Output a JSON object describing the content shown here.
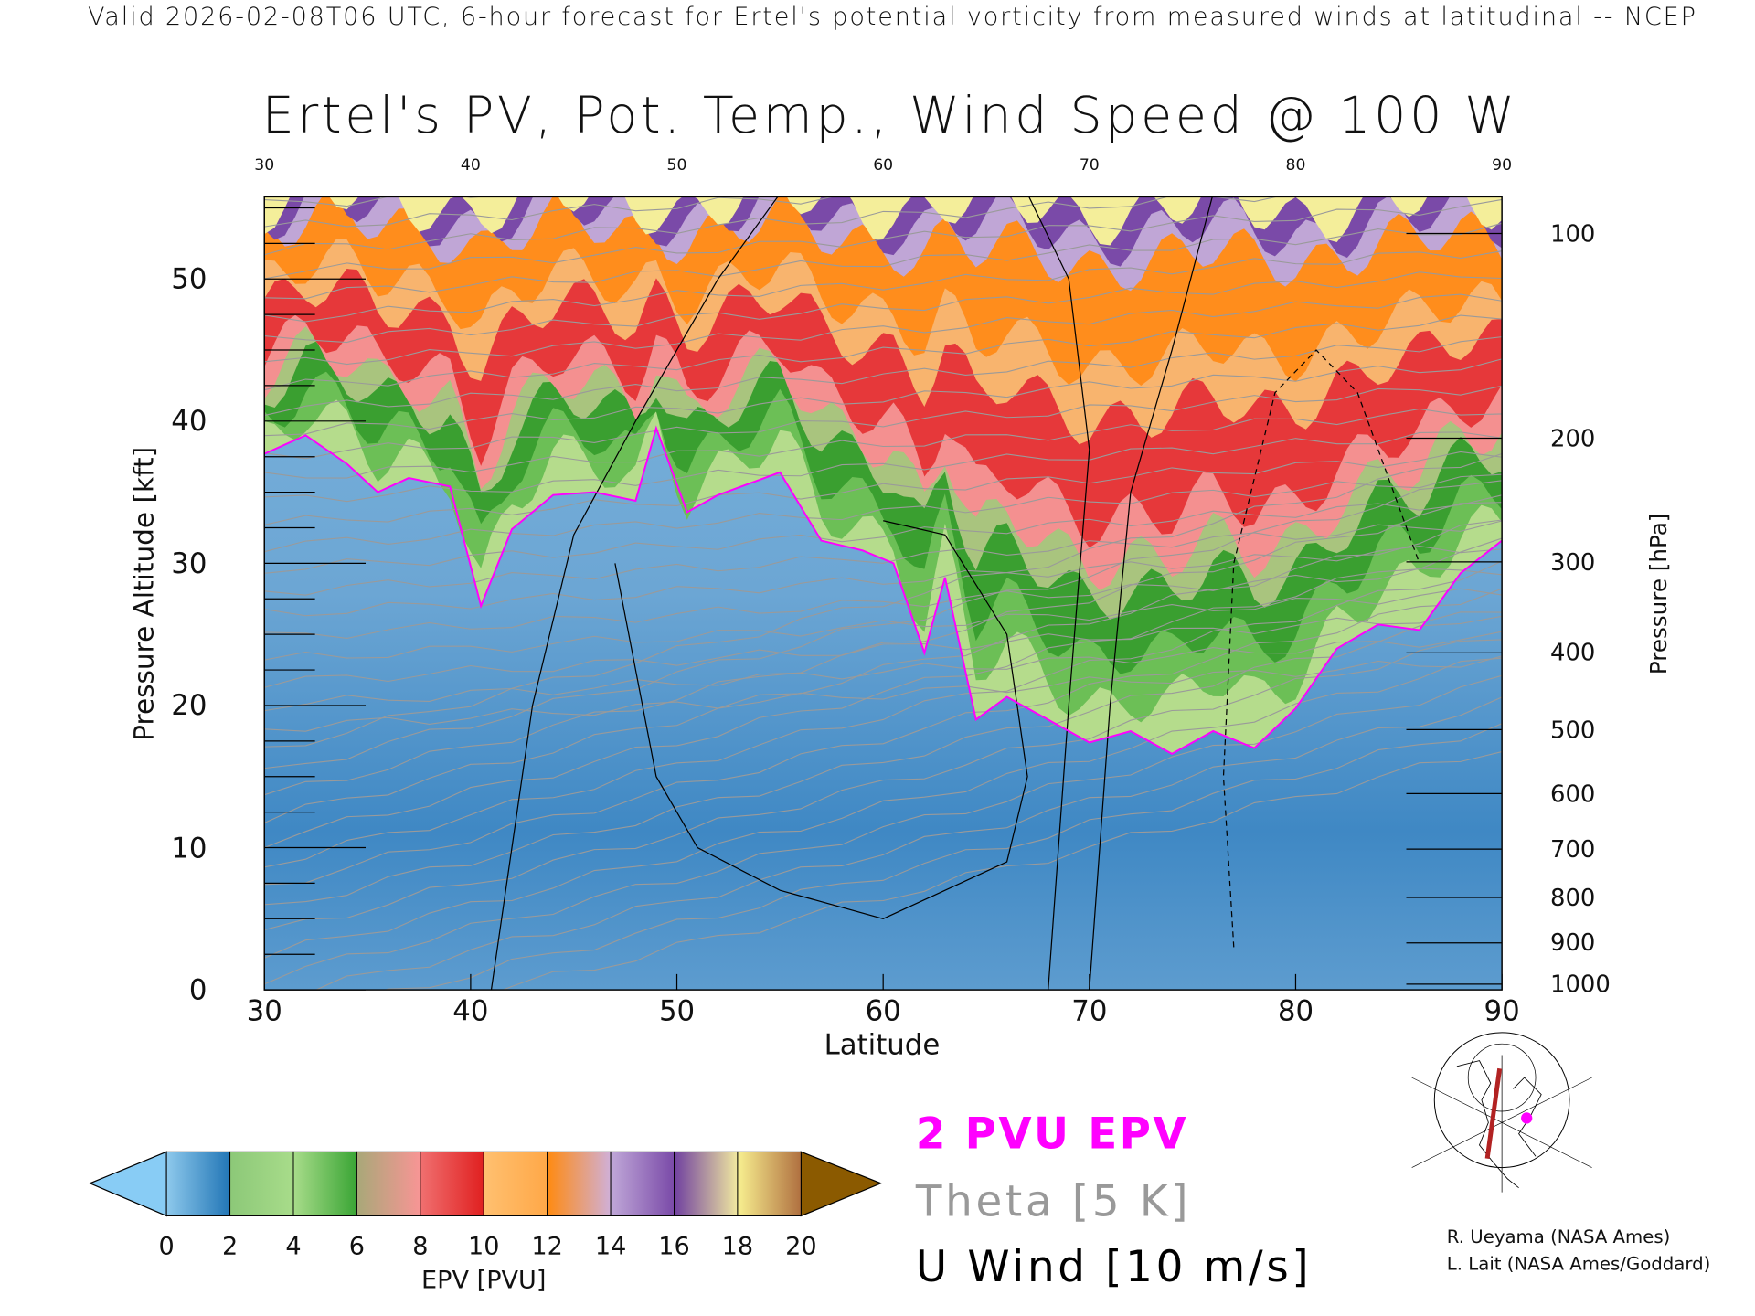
{
  "header": {
    "subtitle": "Valid 2026-02-08T06 UTC, 6-hour forecast for Ertel's potential vorticity from measured winds at latitudinal -- NCEP"
  },
  "chart_data": {
    "type": "heatmap",
    "title": "Ertel's PV, Pot. Temp., Wind Speed @ 100 W",
    "xlabel": "Latitude",
    "ylabel": "Pressure Altitude [kft]",
    "ylabel_right": "Pressure [hPa]",
    "xlim": [
      30,
      90
    ],
    "ylim": [
      0,
      55.8
    ],
    "x_ticks": [
      "30",
      "40",
      "50",
      "60",
      "70",
      "80",
      "90"
    ],
    "top_ticks": [
      "30",
      "40",
      "50",
      "60",
      "70",
      "80",
      "90"
    ],
    "y_ticks": [
      "0",
      "10",
      "20",
      "30",
      "40",
      "50"
    ],
    "pressure_ticks": [
      {
        "label": "100",
        "kft": 53.2
      },
      {
        "label": "200",
        "kft": 38.8
      },
      {
        "label": "300",
        "kft": 30.1
      },
      {
        "label": "400",
        "kft": 23.7
      },
      {
        "label": "500",
        "kft": 18.3
      },
      {
        "label": "600",
        "kft": 13.8
      },
      {
        "label": "700",
        "kft": 9.9
      },
      {
        "label": "800",
        "kft": 6.5
      },
      {
        "label": "900",
        "kft": 3.3
      },
      {
        "label": "1000",
        "kft": 0.4
      }
    ],
    "pv_2pvu_height_kft": {
      "lat": [
        30,
        32,
        34,
        35.5,
        37,
        39,
        40.5,
        42,
        44,
        46,
        48,
        49,
        50.5,
        52,
        55,
        57,
        59,
        60.5,
        62,
        63,
        64.5,
        66,
        68,
        70,
        72,
        74,
        76,
        78,
        80,
        82,
        84,
        86,
        88,
        90
      ],
      "kft": [
        37.7,
        39,
        37,
        35,
        36,
        35.4,
        27,
        32.4,
        34.8,
        35,
        34.4,
        39.5,
        33.6,
        34.8,
        36.4,
        31.6,
        30.9,
        30,
        23.7,
        29,
        19,
        20.6,
        19,
        17.4,
        18.2,
        16.6,
        18.2,
        17,
        19.8,
        24,
        25.7,
        25.3,
        29.3,
        31.6
      ]
    },
    "colorbar": {
      "label": "EPV [PVU]",
      "ticks": [
        "0",
        "2",
        "4",
        "6",
        "8",
        "10",
        "12",
        "14",
        "16",
        "18",
        "20"
      ],
      "under_color": "#88ccf5",
      "over_color": "#8b5a00",
      "segments": [
        [
          "#8ec9ec",
          "#2276b6"
        ],
        [
          "#8cc878",
          "#a8dc8a"
        ],
        [
          "#a8dc8a",
          "#3aa535"
        ],
        [
          "#a8a878",
          "#f89595"
        ],
        [
          "#f07070",
          "#e02020"
        ],
        [
          "#ffc070",
          "#ffa848"
        ],
        [
          "#ff8a10",
          "#d0b0d8"
        ],
        [
          "#c0a8d8",
          "#7a4aa8"
        ],
        [
          "#7040a0",
          "#f0e8a0"
        ],
        [
          "#f8f090",
          "#b07040"
        ]
      ]
    },
    "legend": [
      "2 PVU EPV",
      "Theta [5 K]",
      "U Wind [10 m/s]"
    ],
    "legend_colors": [
      "#ff00ff",
      "#999999",
      "#000000"
    ]
  },
  "credits": [
    "R. Ueyama (NASA Ames)",
    "L. Lait (NASA Ames/Goddard)"
  ],
  "colors": {
    "pv_line": "#ff00ff",
    "section_line": "#b22222",
    "section_dot": "#ff00ff"
  }
}
